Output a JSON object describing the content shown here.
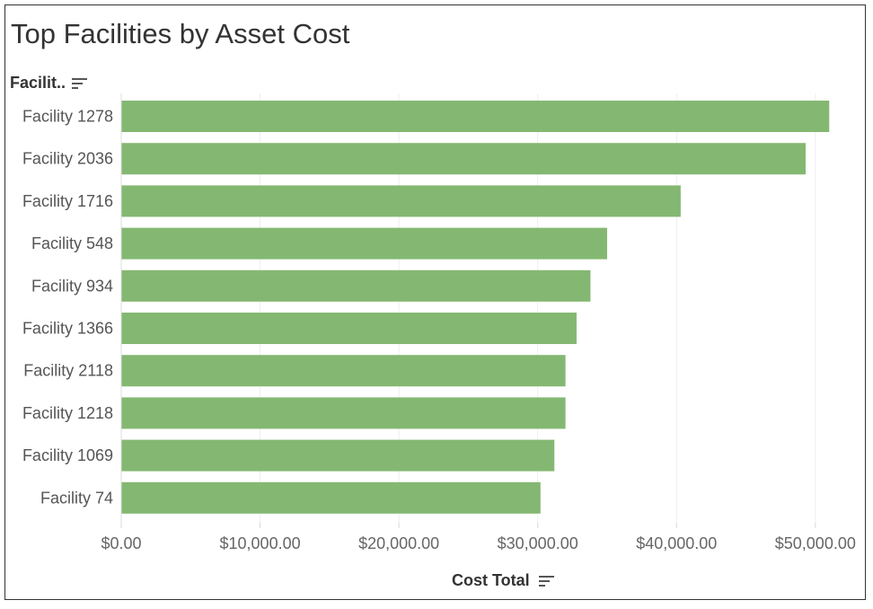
{
  "chart_data": {
    "type": "bar",
    "orientation": "horizontal",
    "title": "Top Facilities by Asset Cost",
    "category_header": "Facilit..",
    "xlabel": "Cost Total",
    "categories": [
      "Facility 1278",
      "Facility 2036",
      "Facility 1716",
      "Facility 548",
      "Facility 934",
      "Facility 1366",
      "Facility 2118",
      "Facility 1218",
      "Facility 1069",
      "Facility 74"
    ],
    "values": [
      51000,
      49300,
      40300,
      35000,
      33800,
      32800,
      32000,
      32000,
      31200,
      30200
    ],
    "xlim": [
      0,
      51500
    ],
    "x_ticks": [
      0,
      10000,
      20000,
      30000,
      40000,
      50000
    ],
    "x_tick_labels": [
      "$0.00",
      "$10,000.00",
      "$20,000.00",
      "$30,000.00",
      "$40,000.00",
      "$50,000.00"
    ],
    "bar_color": "#84b872",
    "grid": "vertical",
    "legend": "none"
  },
  "icons": {
    "category_sort": "sort-descending-icon",
    "measure_sort": "sort-descending-icon"
  }
}
